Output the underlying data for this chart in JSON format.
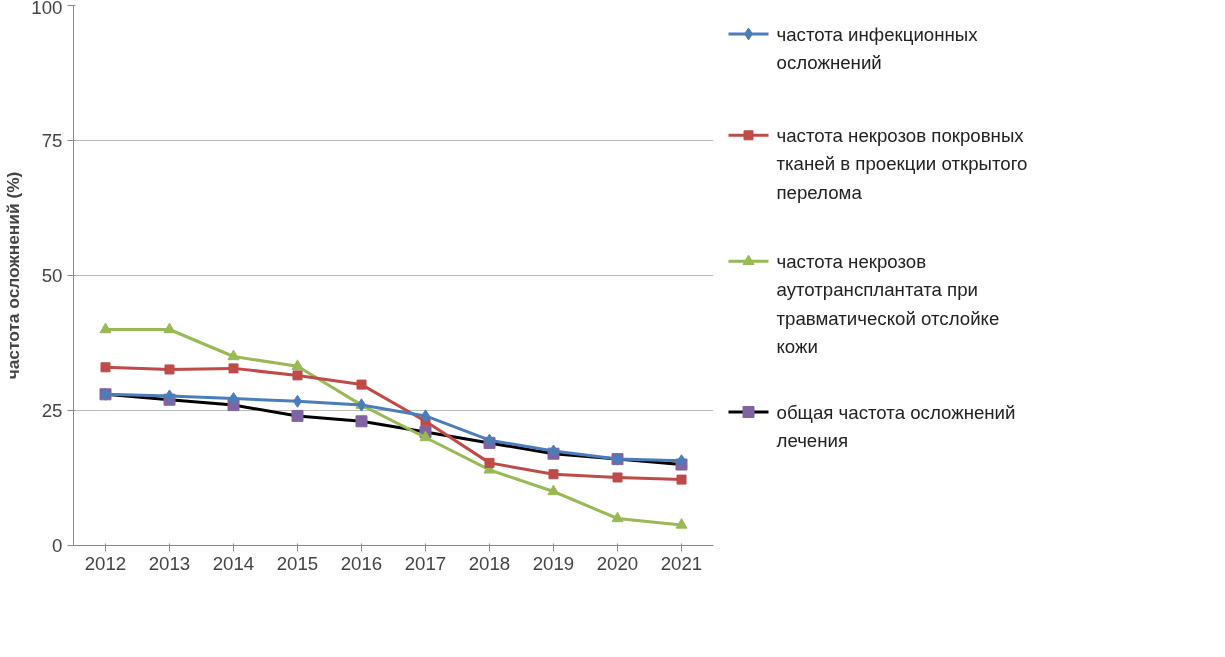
{
  "chart_data": {
    "type": "line",
    "ylabel": "частота осложнений (%)",
    "categories": [
      "2012",
      "2013",
      "2014",
      "2015",
      "2016",
      "2017",
      "2018",
      "2019",
      "2020",
      "2021"
    ],
    "ylim": [
      0,
      100
    ],
    "yticks": [
      0,
      25,
      50,
      75,
      100
    ],
    "grid": "y",
    "legend": "right",
    "series": [
      {
        "name": "частота инфекционных осложнений",
        "color": "#4a7ebb",
        "marker": "diamond",
        "values": [
          28,
          27.7,
          27.2,
          26.7,
          26,
          24,
          19.5,
          17.5,
          16,
          15.7
        ]
      },
      {
        "name": "частота некрозов покровных тканей в проекции открытого перелома",
        "color": "#be4b48",
        "marker": "square",
        "values": [
          33,
          32.6,
          32.8,
          31.5,
          29.8,
          23,
          15.3,
          13.2,
          12.6,
          12.2
        ]
      },
      {
        "name": "частота некрозов аутотрансплантата при травматической отслойке кожи",
        "color": "#98b954",
        "marker": "triangle",
        "values": [
          40,
          40,
          35,
          33.2,
          26,
          20,
          14,
          10,
          5,
          3.8
        ]
      },
      {
        "name": "общая частота осложнений лечения",
        "color": "#000000",
        "marker": "square",
        "values": [
          28,
          27,
          26,
          24,
          23,
          21,
          19,
          17,
          16,
          15
        ]
      }
    ]
  }
}
